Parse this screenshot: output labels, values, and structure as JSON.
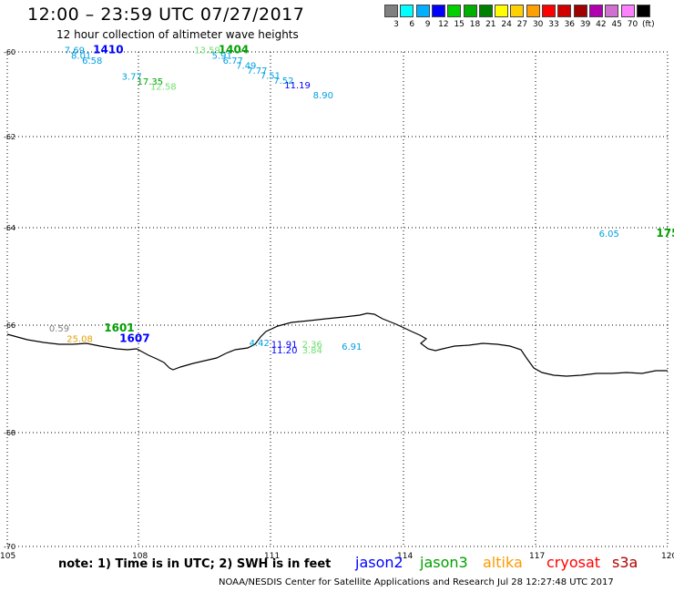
{
  "header": {
    "title": "12:00 – 23:59 UTC 07/27/2017",
    "subtitle": "12 hour collection of altimeter wave heights"
  },
  "legend": {
    "colors": [
      "#808080",
      "#00ffff",
      "#00b0ff",
      "#0000ff",
      "#00d000",
      "#00b000",
      "#008000",
      "#ffff00",
      "#ffd000",
      "#ffa000",
      "#ff0000",
      "#d00000",
      "#a00000",
      "#b000b0",
      "#d070d0",
      "#ff80ff",
      "#000000"
    ],
    "labels": [
      "3",
      "6",
      "9",
      "12",
      "15",
      "18",
      "21",
      "24",
      "27",
      "30",
      "33",
      "36",
      "39",
      "42",
      "45",
      "70",
      "(ft)"
    ]
  },
  "axes": {
    "x_ticks": [
      "105",
      "108",
      "111",
      "114",
      "117",
      "120"
    ],
    "y_ticks": [
      "-60",
      "-62",
      "-64",
      "-66",
      "-68",
      "-70"
    ],
    "lon_range": [
      105,
      120
    ],
    "lat_range": [
      -70,
      -60
    ]
  },
  "map_labels": [
    {
      "text": "7.69",
      "color": "#00a0e0",
      "lon": 106.3,
      "lat": -60.03
    },
    {
      "text": "1410",
      "color": "#0000ff",
      "lon": 106.95,
      "lat": -60.03,
      "bold": true
    },
    {
      "text": "8.01",
      "color": "#00a0e0",
      "lon": 106.45,
      "lat": -60.14
    },
    {
      "text": "6.58",
      "color": "#00a0e0",
      "lon": 106.7,
      "lat": -60.24
    },
    {
      "text": "13.59",
      "color": "#70e070",
      "lon": 109.25,
      "lat": -60.03
    },
    {
      "text": "1404",
      "color": "#00a000",
      "lon": 109.8,
      "lat": -60.03,
      "bold": true
    },
    {
      "text": "5.91",
      "color": "#00a0e0",
      "lon": 109.65,
      "lat": -60.14
    },
    {
      "text": "6.77",
      "color": "#00a0e0",
      "lon": 109.9,
      "lat": -60.24
    },
    {
      "text": "7.49",
      "color": "#00a0e0",
      "lon": 110.2,
      "lat": -60.34
    },
    {
      "text": "7.77",
      "color": "#00a0e0",
      "lon": 110.45,
      "lat": -60.44
    },
    {
      "text": "7.51",
      "color": "#00a0e0",
      "lon": 110.75,
      "lat": -60.54
    },
    {
      "text": "7.52",
      "color": "#00a0e0",
      "lon": 111.05,
      "lat": -60.64
    },
    {
      "text": "11.19",
      "color": "#0000ff",
      "lon": 111.3,
      "lat": -60.74
    },
    {
      "text": "8.90",
      "color": "#00a0e0",
      "lon": 111.95,
      "lat": -60.94
    },
    {
      "text": "3.77",
      "color": "#00a0e0",
      "lon": 107.6,
      "lat": -60.56
    },
    {
      "text": "17.35",
      "color": "#00a000",
      "lon": 107.95,
      "lat": -60.66
    },
    {
      "text": "12.58",
      "color": "#70e070",
      "lon": 108.25,
      "lat": -60.76
    },
    {
      "text": "6.05",
      "color": "#00a0e0",
      "lon": 118.45,
      "lat": -63.74
    },
    {
      "text": "175",
      "color": "#00a000",
      "lon": 119.75,
      "lat": -63.74,
      "bold": true
    },
    {
      "text": "0.59",
      "color": "#808080",
      "lon": 105.95,
      "lat": -65.65
    },
    {
      "text": "1601",
      "color": "#00a000",
      "lon": 107.2,
      "lat": -65.65,
      "bold": true
    },
    {
      "text": "25.08",
      "color": "#e0a000",
      "lon": 106.35,
      "lat": -65.87
    },
    {
      "text": "1607",
      "color": "#0000ff",
      "lon": 107.55,
      "lat": -65.87,
      "bold": true
    },
    {
      "text": "4.42",
      "color": "#00a0e0",
      "lon": 110.5,
      "lat": -65.95
    },
    {
      "text": "11.91",
      "color": "#0000ff",
      "lon": 111.0,
      "lat": -65.98
    },
    {
      "text": "11.20",
      "color": "#0000ff",
      "lon": 111.0,
      "lat": -66.1
    },
    {
      "text": "2.36",
      "color": "#70e070",
      "lon": 111.7,
      "lat": -65.98
    },
    {
      "text": "3.84",
      "color": "#70e070",
      "lon": 111.7,
      "lat": -66.1
    },
    {
      "text": "6.91",
      "color": "#00a0e0",
      "lon": 112.6,
      "lat": -66.02
    }
  ],
  "footer": {
    "note": "note:  1) Time is in UTC;  2) SWH is in feet",
    "credit": "NOAA/NESDIS Center for Satellite Applications and Research    Jul 28 12:27:48 UTC 2017",
    "satellites": [
      {
        "name": "jason2",
        "color": "#0000ff"
      },
      {
        "name": "jason3",
        "color": "#00a000"
      },
      {
        "name": "altika",
        "color": "#ff9900"
      },
      {
        "name": "cryosat",
        "color": "#ff0000"
      },
      {
        "name": "s3a",
        "color": "#b00000"
      }
    ]
  }
}
